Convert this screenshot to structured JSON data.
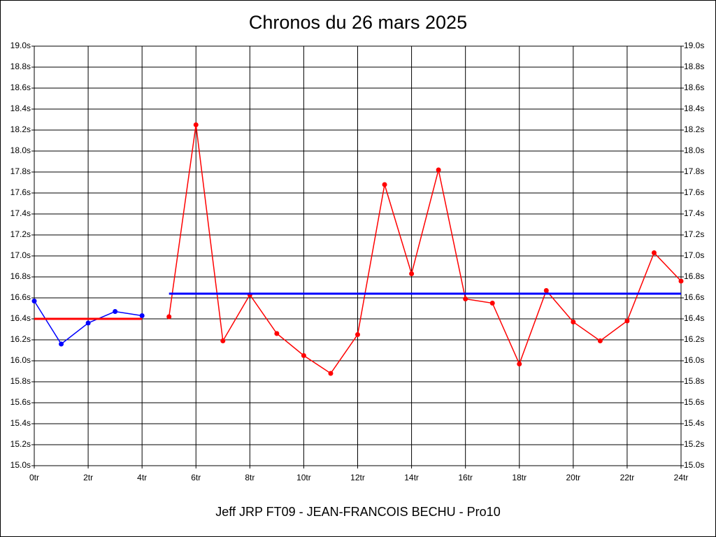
{
  "chart_data": {
    "type": "line",
    "title": "Chronos du 26 mars 2025",
    "xlabel": "Jeff JRP FT09 - JEAN-FRANCOIS BECHU - Pro10",
    "grid": true,
    "xlim": [
      0,
      24
    ],
    "xticks": [
      {
        "value": 0,
        "label": "0tr"
      },
      {
        "value": 2,
        "label": "2tr"
      },
      {
        "value": 4,
        "label": "4tr"
      },
      {
        "value": 6,
        "label": "6tr"
      },
      {
        "value": 8,
        "label": "8tr"
      },
      {
        "value": 10,
        "label": "10tr"
      },
      {
        "value": 12,
        "label": "12tr"
      },
      {
        "value": 14,
        "label": "14tr"
      },
      {
        "value": 16,
        "label": "16tr"
      },
      {
        "value": 18,
        "label": "18tr"
      },
      {
        "value": 20,
        "label": "20tr"
      },
      {
        "value": 22,
        "label": "22tr"
      },
      {
        "value": 24,
        "label": "24tr"
      }
    ],
    "ylim": [
      15.0,
      19.0
    ],
    "yticks": [
      {
        "value": 15.0,
        "label": "15.0s"
      },
      {
        "value": 15.2,
        "label": "15.2s"
      },
      {
        "value": 15.4,
        "label": "15.4s"
      },
      {
        "value": 15.6,
        "label": "15.6s"
      },
      {
        "value": 15.8,
        "label": "15.8s"
      },
      {
        "value": 16.0,
        "label": "16.0s"
      },
      {
        "value": 16.2,
        "label": "16.2s"
      },
      {
        "value": 16.4,
        "label": "16.4s"
      },
      {
        "value": 16.6,
        "label": "16.6s"
      },
      {
        "value": 16.8,
        "label": "16.8s"
      },
      {
        "value": 17.0,
        "label": "17.0s"
      },
      {
        "value": 17.2,
        "label": "17.2s"
      },
      {
        "value": 17.4,
        "label": "17.4s"
      },
      {
        "value": 17.6,
        "label": "17.6s"
      },
      {
        "value": 17.8,
        "label": "17.8s"
      },
      {
        "value": 18.0,
        "label": "18.0s"
      },
      {
        "value": 18.2,
        "label": "18.2s"
      },
      {
        "value": 18.4,
        "label": "18.4s"
      },
      {
        "value": 18.6,
        "label": "18.6s"
      },
      {
        "value": 18.8,
        "label": "18.8s"
      },
      {
        "value": 19.0,
        "label": "19.0s"
      }
    ],
    "series": [
      {
        "color": "#0000ff",
        "markers": true,
        "x": [
          0,
          1,
          2,
          3,
          4
        ],
        "values": [
          16.57,
          16.16,
          16.36,
          16.47,
          16.43
        ]
      },
      {
        "color": "#ff0000",
        "markers": true,
        "x": [
          5,
          6,
          7,
          8,
          9,
          10,
          11,
          12,
          13,
          14,
          15,
          16,
          17,
          18,
          19,
          20,
          21,
          22,
          23,
          24
        ],
        "values": [
          16.42,
          18.25,
          16.19,
          16.63,
          16.26,
          16.05,
          15.88,
          16.25,
          17.68,
          16.83,
          17.82,
          16.59,
          16.55,
          15.97,
          16.67,
          16.37,
          16.19,
          16.38,
          17.03,
          16.76
        ]
      },
      {
        "color": "#ff0000",
        "markers": false,
        "x": [
          0,
          4
        ],
        "values": [
          16.4,
          16.4
        ]
      },
      {
        "color": "#0000ff",
        "markers": false,
        "x": [
          5,
          24
        ],
        "values": [
          16.64,
          16.64
        ]
      }
    ]
  }
}
